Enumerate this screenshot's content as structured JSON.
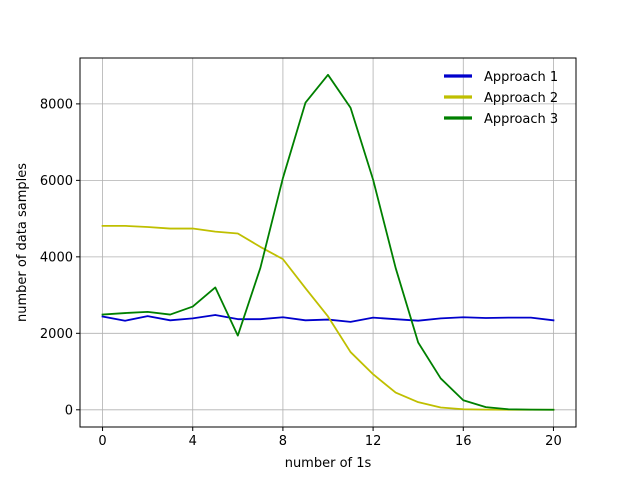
{
  "chart_data": {
    "type": "line",
    "title": "",
    "xlabel": "number of 1s",
    "ylabel": "number of data samples",
    "xlim": [
      -1,
      21
    ],
    "ylim": [
      -450,
      9200
    ],
    "xticks": [
      0,
      4,
      8,
      12,
      16,
      20
    ],
    "yticks": [
      0,
      2000,
      4000,
      6000,
      8000
    ],
    "grid": true,
    "legend_position": "top-right",
    "x": [
      0,
      1,
      2,
      3,
      4,
      5,
      6,
      7,
      8,
      9,
      10,
      11,
      12,
      13,
      14,
      15,
      16,
      17,
      18,
      19,
      20
    ],
    "series": [
      {
        "name": "Approach 1",
        "color": "#0000cc",
        "values": [
          2440,
          2330,
          2450,
          2340,
          2390,
          2480,
          2370,
          2370,
          2420,
          2340,
          2360,
          2300,
          2410,
          2370,
          2330,
          2390,
          2420,
          2400,
          2410,
          2410,
          2340
        ]
      },
      {
        "name": "Approach 2",
        "color": "#bfbf00",
        "values": [
          4810,
          4810,
          4780,
          4740,
          4740,
          4660,
          4610,
          4260,
          3940,
          3180,
          2440,
          1510,
          930,
          450,
          200,
          60,
          15,
          5,
          3,
          2,
          1
        ]
      },
      {
        "name": "Approach 3",
        "color": "#008000",
        "values": [
          2490,
          2530,
          2560,
          2490,
          2700,
          3200,
          1940,
          3710,
          6060,
          8030,
          8760,
          7900,
          6020,
          3710,
          1760,
          820,
          250,
          70,
          15,
          5,
          2
        ]
      }
    ]
  }
}
